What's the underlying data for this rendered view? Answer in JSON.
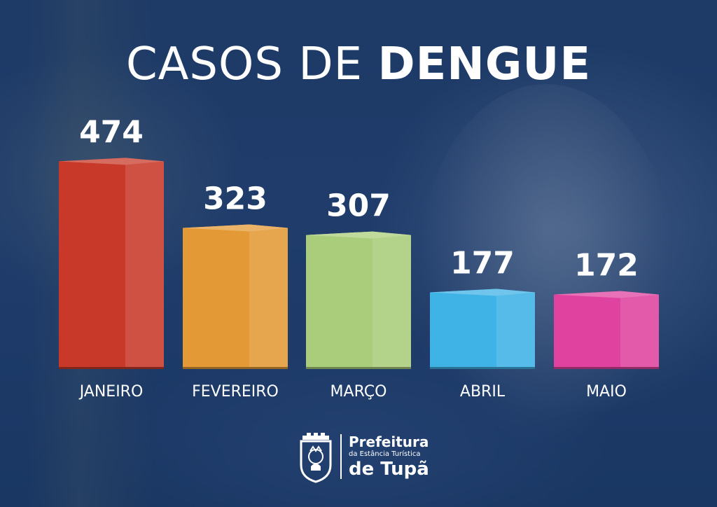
{
  "title": {
    "light": "CASOS DE",
    "bold": "DENGUE"
  },
  "chart_data": {
    "type": "bar",
    "title": "CASOS DE DENGUE",
    "categories": [
      "JANEIRO",
      "FEVEREIRO",
      "MARÇO",
      "ABRIL",
      "MAIO"
    ],
    "values": [
      474,
      323,
      307,
      177,
      172
    ],
    "value_labels": [
      "474",
      "323",
      "307",
      "177",
      "172"
    ],
    "colors": [
      "#c8392a",
      "#e39a36",
      "#a9cd7a",
      "#3fb2e6",
      "#e0439f"
    ],
    "xlabel": "",
    "ylabel": "",
    "grid": false,
    "legend": "none"
  },
  "logo": {
    "line1": "Prefeitura",
    "line2": "da Estância Turística",
    "line3": "de Tupã"
  }
}
